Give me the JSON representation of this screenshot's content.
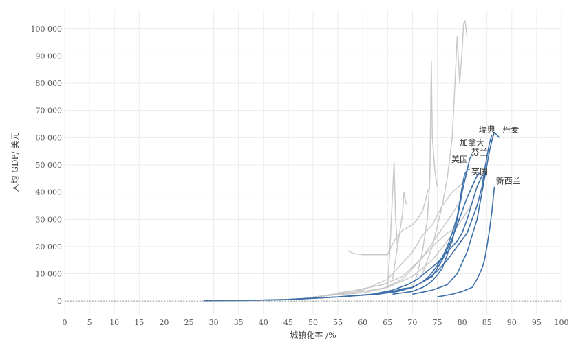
{
  "chart_data": {
    "type": "line",
    "title": "",
    "xlabel": "城镇化率 /%",
    "ylabel": "人均 GDP/ 美元",
    "xlim": [
      0,
      100
    ],
    "ylim": [
      -5000,
      107000
    ],
    "x_ticks": [
      0,
      5,
      10,
      15,
      20,
      25,
      30,
      35,
      40,
      45,
      50,
      55,
      60,
      65,
      70,
      75,
      80,
      85,
      90,
      95,
      100
    ],
    "x_tick_labels": [
      "0",
      "5",
      "10",
      "15",
      "20",
      "25",
      "30",
      "35",
      "40",
      "45",
      "50",
      "55",
      "60",
      "65",
      "70",
      "75",
      "80",
      "85",
      "90",
      "95",
      "100"
    ],
    "y_ticks": [
      0,
      10000,
      20000,
      30000,
      40000,
      50000,
      60000,
      70000,
      80000,
      90000,
      100000
    ],
    "y_tick_labels": [
      "0",
      "10 000",
      "20 000",
      "30 000",
      "40 000",
      "50 000",
      "60 000",
      "70 000",
      "80 000",
      "90 000",
      "100 000"
    ],
    "grid": true,
    "colors": {
      "highlight": "#3d6fa8",
      "background_series": "#c9c9c9",
      "grid": "#ececec",
      "zero_line": "#9a9a9a"
    },
    "series": [
      {
        "name": "美国",
        "highlight": true,
        "label_at": [
          79.5,
          51000
        ],
        "x": [
          64,
          66,
          68,
          70,
          71,
          72,
          73,
          74,
          75,
          76,
          77,
          78,
          79,
          79.5,
          80,
          80.5,
          81,
          81.5
        ],
        "y": [
          2900,
          3500,
          4500,
          5000,
          6000,
          7000,
          8500,
          10500,
          13000,
          16000,
          20000,
          25000,
          31000,
          36000,
          42000,
          46500,
          48000,
          48500
        ]
      },
      {
        "name": "加拿大",
        "highlight": true,
        "label_at": [
          82,
          57000
        ],
        "x": [
          66,
          68,
          70,
          72,
          73,
          74,
          75,
          76,
          76.5,
          77,
          77.5,
          78,
          78.5,
          79,
          79.5,
          80,
          80.5,
          81,
          81.5,
          82
        ],
        "y": [
          2500,
          3000,
          3500,
          5000,
          6000,
          7500,
          9500,
          12000,
          14500,
          17000,
          20000,
          22000,
          26000,
          30000,
          35000,
          40000,
          44000,
          48000,
          52000,
          54000
        ]
      },
      {
        "name": "芬兰",
        "highlight": true,
        "label_at": [
          83.5,
          53500
        ],
        "x": [
          38,
          45,
          55,
          62,
          66,
          69,
          71,
          73,
          75,
          77,
          79,
          80,
          81,
          82,
          83,
          84,
          85
        ],
        "y": [
          300,
          600,
          1500,
          2500,
          4000,
          6000,
          8000,
          11000,
          14000,
          18000,
          22000,
          25000,
          30000,
          36000,
          42000,
          46000,
          47000
        ]
      },
      {
        "name": "瑞典",
        "highlight": true,
        "label_at": [
          85,
          62000
        ],
        "x": [
          45,
          55,
          60,
          65,
          70,
          73,
          75,
          77,
          79,
          81,
          82,
          83,
          84,
          84.5,
          85,
          85.5,
          86
        ],
        "y": [
          600,
          1500,
          2200,
          3000,
          5000,
          8000,
          11000,
          15000,
          20000,
          25000,
          30000,
          35000,
          42000,
          48000,
          53000,
          58000,
          61000
        ]
      },
      {
        "name": "丹麦",
        "highlight": true,
        "label_at": [
          89.8,
          62000
        ],
        "x": [
          70,
          74,
          77,
          79,
          80,
          81,
          82,
          83,
          83.5,
          84,
          84.5,
          85,
          85.5,
          86,
          86.5,
          87,
          87.5
        ],
        "y": [
          2500,
          4000,
          6000,
          10000,
          14000,
          18000,
          24000,
          30000,
          35000,
          40000,
          45000,
          50000,
          55000,
          59000,
          62000,
          61000,
          60000
        ]
      },
      {
        "name": "英国",
        "highlight": true,
        "label_at": [
          83.5,
          46500
        ],
        "x": [
          28,
          35,
          45,
          55,
          63,
          67,
          70,
          72,
          74,
          75,
          76,
          77,
          78,
          79,
          80,
          81,
          82,
          83,
          83.5
        ],
        "y": [
          100,
          200,
          500,
          1500,
          2500,
          3500,
          5000,
          7000,
          9000,
          12000,
          15000,
          19000,
          23000,
          28000,
          33000,
          38000,
          42000,
          46000,
          47000
        ]
      },
      {
        "name": "新西兰",
        "highlight": true,
        "label_at": [
          89.3,
          43000
        ],
        "x": [
          75,
          78,
          80,
          82,
          83,
          84,
          84.5,
          85,
          85.5,
          86,
          86.5
        ],
        "y": [
          1500,
          2500,
          3500,
          5000,
          8000,
          12000,
          15000,
          20000,
          26000,
          33000,
          42000
        ]
      },
      {
        "name": "",
        "highlight": false,
        "x": [
          57,
          58,
          60,
          62,
          64,
          65,
          65.5,
          66,
          67,
          68,
          69,
          70,
          71,
          72,
          72.5,
          73,
          73.5
        ],
        "y": [
          18500,
          17500,
          17000,
          17000,
          17000,
          17000,
          19000,
          21000,
          24000,
          26000,
          27000,
          28000,
          30000,
          33000,
          36000,
          40000,
          42000
        ]
      },
      {
        "name": "",
        "highlight": false,
        "x": [
          65,
          65.5,
          66,
          66.3,
          66.6,
          67
        ],
        "y": [
          5000,
          20000,
          40000,
          51000,
          30000,
          20000
        ]
      },
      {
        "name": "",
        "highlight": false,
        "x": [
          66,
          67,
          68,
          68.3,
          68.7,
          69
        ],
        "y": [
          8000,
          20000,
          32000,
          40000,
          36000,
          35000
        ]
      },
      {
        "name": "",
        "highlight": false,
        "x": [
          70,
          71,
          72,
          73,
          73.5,
          73.8,
          74,
          74.5,
          75
        ],
        "y": [
          5000,
          10000,
          18000,
          30000,
          45000,
          88000,
          60000,
          48000,
          42000
        ]
      },
      {
        "name": "",
        "highlight": false,
        "x": [
          72,
          74,
          76,
          77,
          78,
          78.5,
          79,
          79.5,
          80,
          80.3,
          80.6,
          81
        ],
        "y": [
          10000,
          20000,
          35000,
          45000,
          60000,
          78000,
          97000,
          80000,
          92000,
          102000,
          103000,
          97000
        ]
      },
      {
        "name": "",
        "highlight": false,
        "x": [
          55,
          60,
          65,
          70,
          72,
          74,
          76,
          78,
          80
        ],
        "y": [
          3000,
          4000,
          8000,
          18000,
          24000,
          28000,
          35000,
          40000,
          43000
        ]
      },
      {
        "name": "",
        "highlight": false,
        "x": [
          50,
          55,
          60,
          65,
          70,
          74,
          77,
          80,
          82
        ],
        "y": [
          1500,
          2500,
          3500,
          5000,
          9000,
          15000,
          22000,
          30000,
          36000
        ]
      },
      {
        "name": "",
        "highlight": false,
        "x": [
          52,
          56,
          60,
          64,
          68,
          72,
          75,
          78,
          80
        ],
        "y": [
          2000,
          3000,
          4500,
          6000,
          9000,
          16000,
          24000,
          32000,
          38000
        ]
      },
      {
        "name": "",
        "highlight": false,
        "x": [
          48,
          52,
          56,
          60,
          64,
          68,
          71,
          74,
          77,
          79
        ],
        "y": [
          1000,
          1800,
          2500,
          3000,
          4500,
          8000,
          14000,
          20000,
          25000,
          27000
        ]
      }
    ]
  }
}
